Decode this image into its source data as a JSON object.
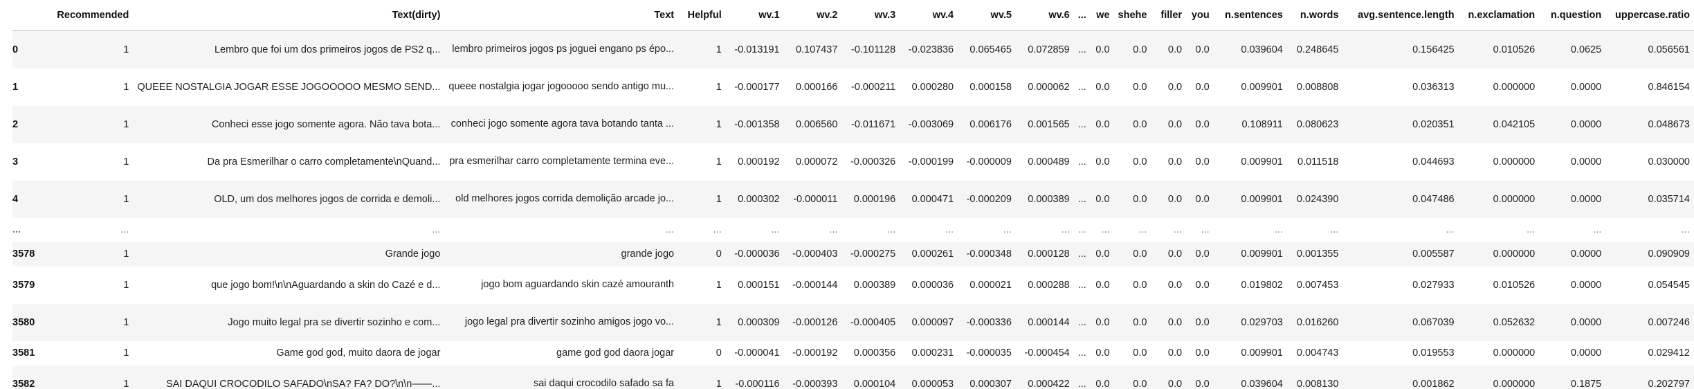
{
  "columns": [
    "",
    "Recommended",
    "Text(dirty)",
    "Text",
    "Helpful",
    "wv.1",
    "wv.2",
    "wv.3",
    "wv.4",
    "wv.5",
    "wv.6",
    "...",
    "we",
    "shehe",
    "filler",
    "you",
    "n.sentences",
    "n.words",
    "avg.sentence.length",
    "n.exclamation",
    "n.question",
    "uppercase.ratio"
  ],
  "rows": [
    {
      "index": "0",
      "recommended": "1",
      "text_dirty": "Lembro que foi um dos primeiros jogos de PS2 q...",
      "text": "lembro primeiros jogos ps joguei engano ps épo...",
      "helpful": "1",
      "wv1": "-0.013191",
      "wv2": "0.107437",
      "wv3": "-0.101128",
      "wv4": "-0.023836",
      "wv5": "0.065465",
      "wv6": "0.072859",
      "ell": "...",
      "we": "0.0",
      "shehe": "0.0",
      "filler": "0.0",
      "you": "0.0",
      "n_sentences": "0.039604",
      "n_words": "0.248645",
      "avg_sentence_length": "0.156425",
      "n_exclamation": "0.010526",
      "n_question": "0.0625",
      "uppercase_ratio": "0.056561"
    },
    {
      "index": "1",
      "recommended": "1",
      "text_dirty": "QUEEE NOSTALGIA JOGAR ESSE JOGOOOOO MESMO SEND...",
      "text": "queee nostalgia jogar jogooooo sendo antigo mu...",
      "helpful": "1",
      "wv1": "-0.000177",
      "wv2": "0.000166",
      "wv3": "-0.000211",
      "wv4": "0.000280",
      "wv5": "0.000158",
      "wv6": "0.000062",
      "ell": "...",
      "we": "0.0",
      "shehe": "0.0",
      "filler": "0.0",
      "you": "0.0",
      "n_sentences": "0.009901",
      "n_words": "0.008808",
      "avg_sentence_length": "0.036313",
      "n_exclamation": "0.000000",
      "n_question": "0.0000",
      "uppercase_ratio": "0.846154"
    },
    {
      "index": "2",
      "recommended": "1",
      "text_dirty": "Conheci esse jogo somente agora. Não tava bota...",
      "text": "conheci jogo somente agora tava botando tanta ...",
      "helpful": "1",
      "wv1": "-0.001358",
      "wv2": "0.006560",
      "wv3": "-0.011671",
      "wv4": "-0.003069",
      "wv5": "0.006176",
      "wv6": "0.001565",
      "ell": "...",
      "we": "0.0",
      "shehe": "0.0",
      "filler": "0.0",
      "you": "0.0",
      "n_sentences": "0.108911",
      "n_words": "0.080623",
      "avg_sentence_length": "0.020351",
      "n_exclamation": "0.042105",
      "n_question": "0.0000",
      "uppercase_ratio": "0.048673"
    },
    {
      "index": "3",
      "recommended": "1",
      "text_dirty": "Da pra Esmerilhar o carro completamente\\nQuand...",
      "text": "pra esmerilhar carro completamente termina eve...",
      "helpful": "1",
      "wv1": "0.000192",
      "wv2": "0.000072",
      "wv3": "-0.000326",
      "wv4": "-0.000199",
      "wv5": "-0.000009",
      "wv6": "0.000489",
      "ell": "...",
      "we": "0.0",
      "shehe": "0.0",
      "filler": "0.0",
      "you": "0.0",
      "n_sentences": "0.009901",
      "n_words": "0.011518",
      "avg_sentence_length": "0.044693",
      "n_exclamation": "0.000000",
      "n_question": "0.0000",
      "uppercase_ratio": "0.030000"
    },
    {
      "index": "4",
      "recommended": "1",
      "text_dirty": "OLD, um dos melhores jogos de corrida e demoli...",
      "text": "old melhores jogos corrida demolição arcade jo...",
      "helpful": "1",
      "wv1": "0.000302",
      "wv2": "-0.000011",
      "wv3": "0.000196",
      "wv4": "0.000471",
      "wv5": "-0.000209",
      "wv6": "0.000389",
      "ell": "...",
      "we": "0.0",
      "shehe": "0.0",
      "filler": "0.0",
      "you": "0.0",
      "n_sentences": "0.009901",
      "n_words": "0.024390",
      "avg_sentence_length": "0.047486",
      "n_exclamation": "0.000000",
      "n_question": "0.0000",
      "uppercase_ratio": "0.035714"
    },
    {
      "index": "...",
      "recommended": "...",
      "text_dirty": "...",
      "text": "...",
      "helpful": "...",
      "wv1": "...",
      "wv2": "...",
      "wv3": "...",
      "wv4": "...",
      "wv5": "...",
      "wv6": "...",
      "ell": "...",
      "we": "...",
      "shehe": "...",
      "filler": "...",
      "you": "...",
      "n_sentences": "...",
      "n_words": "...",
      "avg_sentence_length": "...",
      "n_exclamation": "...",
      "n_question": "...",
      "uppercase_ratio": "..."
    },
    {
      "index": "3578",
      "recommended": "1",
      "text_dirty": "Grande jogo",
      "text": "grande jogo",
      "helpful": "0",
      "wv1": "-0.000036",
      "wv2": "-0.000403",
      "wv3": "-0.000275",
      "wv4": "0.000261",
      "wv5": "-0.000348",
      "wv6": "0.000128",
      "ell": "...",
      "we": "0.0",
      "shehe": "0.0",
      "filler": "0.0",
      "you": "0.0",
      "n_sentences": "0.009901",
      "n_words": "0.001355",
      "avg_sentence_length": "0.005587",
      "n_exclamation": "0.000000",
      "n_question": "0.0000",
      "uppercase_ratio": "0.090909"
    },
    {
      "index": "3579",
      "recommended": "1",
      "text_dirty": "que jogo bom!\\n\\nAguardando a skin do Cazé e d...",
      "text": "jogo bom aguardando skin cazé amouranth",
      "helpful": "1",
      "wv1": "0.000151",
      "wv2": "-0.000144",
      "wv3": "0.000389",
      "wv4": "0.000036",
      "wv5": "0.000021",
      "wv6": "0.000288",
      "ell": "...",
      "we": "0.0",
      "shehe": "0.0",
      "filler": "0.0",
      "you": "0.0",
      "n_sentences": "0.019802",
      "n_words": "0.007453",
      "avg_sentence_length": "0.027933",
      "n_exclamation": "0.010526",
      "n_question": "0.0000",
      "uppercase_ratio": "0.054545"
    },
    {
      "index": "3580",
      "recommended": "1",
      "text_dirty": "Jogo muito legal pra se divertir sozinho e com...",
      "text": "jogo legal pra divertir sozinho amigos jogo vo...",
      "helpful": "1",
      "wv1": "0.000309",
      "wv2": "-0.000126",
      "wv3": "-0.000405",
      "wv4": "0.000097",
      "wv5": "-0.000336",
      "wv6": "0.000144",
      "ell": "...",
      "we": "0.0",
      "shehe": "0.0",
      "filler": "0.0",
      "you": "0.0",
      "n_sentences": "0.029703",
      "n_words": "0.016260",
      "avg_sentence_length": "0.067039",
      "n_exclamation": "0.052632",
      "n_question": "0.0000",
      "uppercase_ratio": "0.007246"
    },
    {
      "index": "3581",
      "recommended": "1",
      "text_dirty": "Game god god, muito daora de jogar",
      "text": "game god god daora jogar",
      "helpful": "0",
      "wv1": "-0.000041",
      "wv2": "-0.000192",
      "wv3": "0.000356",
      "wv4": "0.000231",
      "wv5": "-0.000035",
      "wv6": "-0.000454",
      "ell": "...",
      "we": "0.0",
      "shehe": "0.0",
      "filler": "0.0",
      "you": "0.0",
      "n_sentences": "0.009901",
      "n_words": "0.004743",
      "avg_sentence_length": "0.019553",
      "n_exclamation": "0.000000",
      "n_question": "0.0000",
      "uppercase_ratio": "0.029412"
    },
    {
      "index": "3582",
      "recommended": "1",
      "text_dirty": "SAI DAQUI CROCODILO SAFADO\\nSA? FA? DO?\\n\\n——...",
      "text": "sai daqui crocodilo safado sa fa",
      "helpful": "1",
      "wv1": "-0.000116",
      "wv2": "-0.000393",
      "wv3": "0.000104",
      "wv4": "0.000053",
      "wv5": "0.000307",
      "wv6": "0.000422",
      "ell": "...",
      "we": "0.0",
      "shehe": "0.0",
      "filler": "0.0",
      "you": "0.0",
      "n_sentences": "0.039604",
      "n_words": "0.008130",
      "avg_sentence_length": "0.001862",
      "n_exclamation": "0.000000",
      "n_question": "0.1875",
      "uppercase_ratio": "0.202797"
    }
  ]
}
